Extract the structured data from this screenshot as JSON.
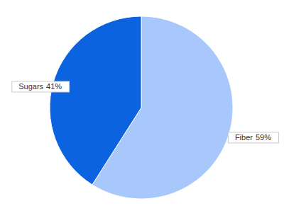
{
  "chart_data": {
    "type": "pie",
    "categories": [
      "Fiber",
      "Sugars"
    ],
    "values": [
      59,
      41
    ],
    "value_labels": [
      "59%",
      "41%"
    ],
    "colors": [
      "#a8c7fa",
      "#0b63e0"
    ],
    "data_labels": true
  }
}
